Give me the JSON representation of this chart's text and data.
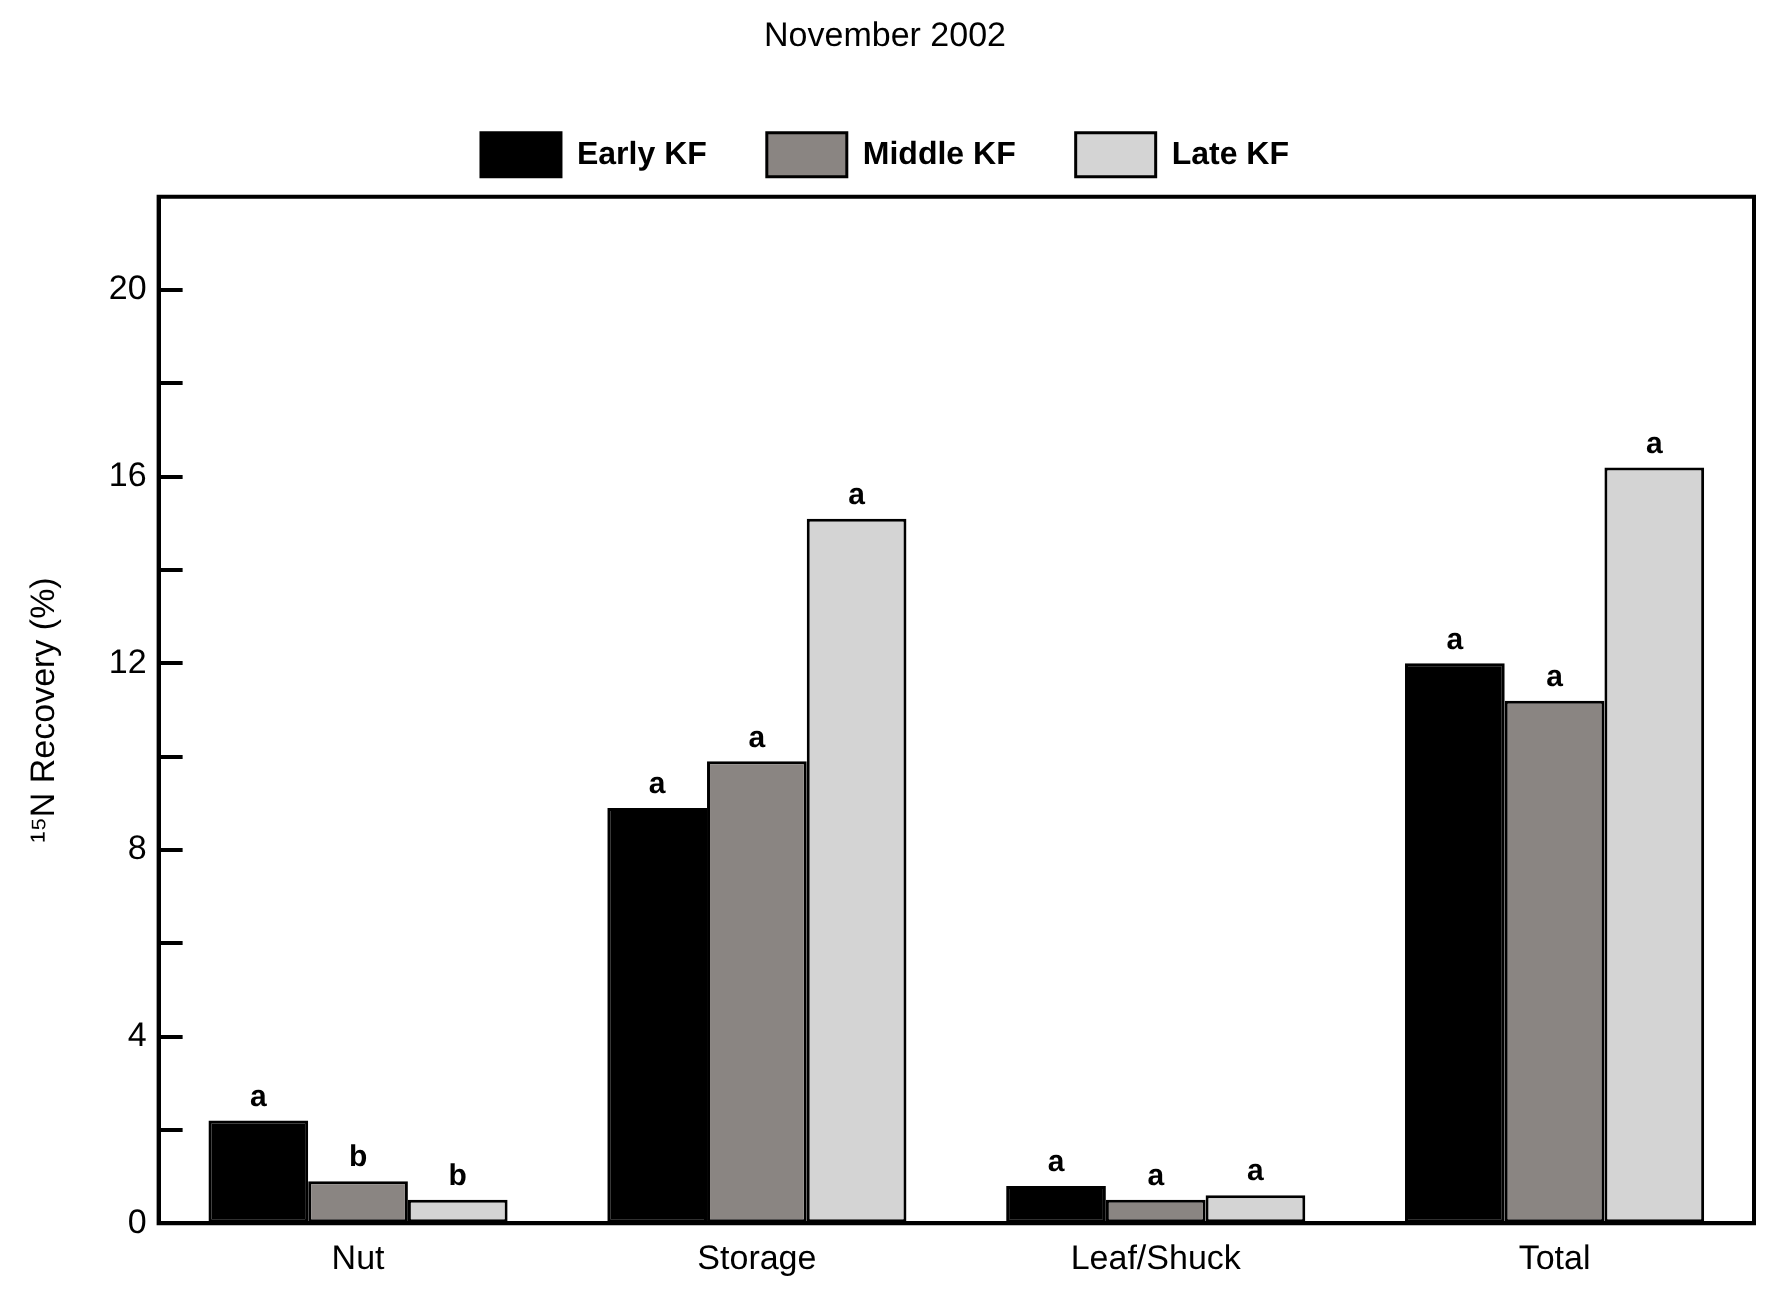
{
  "chart_data": {
    "type": "bar",
    "title": "November 2002",
    "ylabel": "¹⁵N Recovery (%)",
    "categories": [
      "Nut",
      "Storage",
      "Leaf/Shuck",
      "Total"
    ],
    "series": [
      {
        "name": "Early KF",
        "color": "#000000",
        "values": [
          2.2,
          8.9,
          0.8,
          12.0
        ],
        "value_labels": [
          "a",
          "a",
          "a",
          "a"
        ]
      },
      {
        "name": "Middle KF",
        "color": "#8a8582",
        "values": [
          0.9,
          9.9,
          0.5,
          11.2
        ],
        "value_labels": [
          "b",
          "a",
          "a",
          "a"
        ]
      },
      {
        "name": "Late KF",
        "color": "#d4d4d4",
        "values": [
          0.5,
          15.1,
          0.6,
          16.2
        ],
        "value_labels": [
          "b",
          "a",
          "a",
          "a"
        ]
      }
    ],
    "ylim": [
      0,
      22
    ],
    "yticks": [
      0,
      {
        "value": 2,
        "label": null
      },
      4,
      {
        "value": 6,
        "label": null
      },
      8,
      {
        "value": 10,
        "label": null
      },
      12,
      {
        "value": 14,
        "label": null
      },
      16,
      {
        "value": 18,
        "label": null
      },
      20
    ],
    "grid": false,
    "legend": "top"
  }
}
